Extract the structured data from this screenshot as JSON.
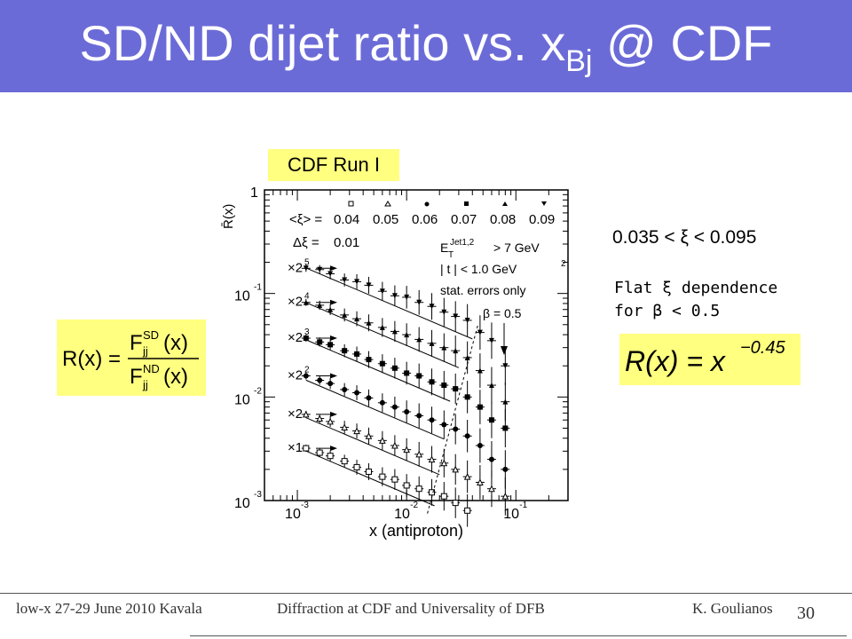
{
  "slide": {
    "title_main": "SD/ND dijet ratio vs. x",
    "title_sub": "Bj",
    "title_tail": "@ CDF",
    "run_label": "CDF Run I",
    "xi_range": "0.035 < ξ < 0.095",
    "flat_line1": "Flat ξ dependence",
    "flat_line2": "for β < 0.5",
    "formula": {
      "lhs": "R(x) =",
      "num_F": "F",
      "num_sup": "SD",
      "num_sub": "jj",
      "num_arg": "(x)",
      "den_F": "F",
      "den_sup": "ND",
      "den_sub": "jj",
      "den_arg": "(x)"
    },
    "fit": {
      "lhs": "R(x) = x",
      "exponent": "−0.45"
    },
    "footer": {
      "left": "low-x 27-29 June 2010 Kavala",
      "middle": "Diffraction at CDF and Universality of DFB",
      "right": "K. Goulianos",
      "page": "30"
    }
  },
  "chart_data": {
    "type": "scatter",
    "ylabel": "R̄(x)",
    "xlabel": "x (antiproton)",
    "x_scale": "log",
    "y_scale": "log",
    "xlim": [
      0.0005,
      0.3
    ],
    "ylim": [
      0.001,
      1
    ],
    "x_ticks": [
      {
        "value": 0.001,
        "base": "10",
        "exp": "-3"
      },
      {
        "value": 0.01,
        "base": "10",
        "exp": "-2"
      },
      {
        "value": 0.1,
        "base": "10",
        "exp": "-1"
      }
    ],
    "y_ticks": [
      {
        "value": 1,
        "base": "1",
        "exp": ""
      },
      {
        "value": 0.1,
        "base": "10",
        "exp": "-1"
      },
      {
        "value": 0.01,
        "base": "10",
        "exp": "-2"
      },
      {
        "value": 0.001,
        "base": "10",
        "exp": "-3"
      }
    ],
    "legend": {
      "xi_prefix": "<ξ> =",
      "xi_values": [
        "0.04",
        "0.05",
        "0.06",
        "0.07",
        "0.08",
        "0.09"
      ],
      "markers": [
        "open-square",
        "open-triangle",
        "filled-circle",
        "filled-square",
        "filled-triangle",
        "filled-triangle-down"
      ],
      "dxi_prefix": "Δξ =",
      "dxi_value": "0.01"
    },
    "annotations": {
      "cut1": "E",
      "cut1_sub": "T",
      "cut1_sup": "Jet1,2",
      "cut1_rest": "> 7 GeV",
      "cut2": "| t | < 1.0 GeV",
      "cut2_sup": "2",
      "cut3": "stat. errors only",
      "beta": "β = 0.5"
    },
    "scale_labels": [
      {
        "base": "×2",
        "exp": "5"
      },
      {
        "base": "×2",
        "exp": "4"
      },
      {
        "base": "×2",
        "exp": "3"
      },
      {
        "base": "×2",
        "exp": "2"
      },
      {
        "base": "×2",
        "exp": ""
      },
      {
        "base": "×1",
        "exp": ""
      }
    ],
    "series": [
      {
        "marker": "filled-triangle-down",
        "xi": 0.09,
        "fit": {
          "a": 0.00855,
          "x_start": 0.0012,
          "x_end": 0.04
        },
        "x": [
          0.0012,
          0.0016,
          0.002,
          0.0027,
          0.0035,
          0.0045,
          0.006,
          0.0078,
          0.01,
          0.013,
          0.017,
          0.022,
          0.028,
          0.036,
          0.047,
          0.06,
          0.08
        ],
        "y": [
          0.175,
          0.17,
          0.155,
          0.135,
          0.13,
          0.12,
          0.105,
          0.095,
          0.092,
          0.082,
          0.075,
          0.066,
          0.06,
          0.055,
          0.042,
          0.035,
          0.02
        ]
      },
      {
        "marker": "filled-triangle",
        "xi": 0.08,
        "fit": {
          "a": 0.00396,
          "x_start": 0.0012,
          "x_end": 0.03
        },
        "x": [
          0.0012,
          0.0016,
          0.002,
          0.0027,
          0.0035,
          0.0045,
          0.006,
          0.0078,
          0.01,
          0.013,
          0.017,
          0.022,
          0.028,
          0.036,
          0.047,
          0.06,
          0.08
        ],
        "y": [
          0.082,
          0.077,
          0.07,
          0.062,
          0.057,
          0.052,
          0.047,
          0.043,
          0.04,
          0.036,
          0.033,
          0.03,
          0.028,
          0.024,
          0.018,
          0.013,
          0.009
        ]
      },
      {
        "marker": "filled-square",
        "xi": 0.07,
        "fit": {
          "a": 0.00173,
          "x_start": 0.0012,
          "x_end": 0.025
        },
        "x": [
          0.0012,
          0.0016,
          0.002,
          0.0027,
          0.0035,
          0.0045,
          0.006,
          0.0078,
          0.01,
          0.013,
          0.017,
          0.022,
          0.028,
          0.036,
          0.047,
          0.06,
          0.08
        ],
        "y": [
          0.037,
          0.034,
          0.032,
          0.028,
          0.026,
          0.023,
          0.021,
          0.019,
          0.017,
          0.016,
          0.014,
          0.013,
          0.012,
          0.01,
          0.008,
          0.006,
          0.005
        ]
      },
      {
        "marker": "filled-circle",
        "xi": 0.06,
        "fit": {
          "a": 0.000705,
          "x_start": 0.0012,
          "x_end": 0.022
        },
        "x": [
          0.0012,
          0.0016,
          0.002,
          0.0027,
          0.0035,
          0.0045,
          0.006,
          0.0078,
          0.01,
          0.013,
          0.017,
          0.022,
          0.028,
          0.036,
          0.047,
          0.06,
          0.08
        ],
        "y": [
          0.016,
          0.0145,
          0.0135,
          0.0118,
          0.011,
          0.0098,
          0.0088,
          0.008,
          0.0072,
          0.0066,
          0.006,
          0.0054,
          0.0049,
          0.0042,
          0.0034,
          0.0025,
          0.002
        ]
      },
      {
        "marker": "open-triangle",
        "xi": 0.05,
        "fit": {
          "a": 0.000306,
          "x_start": 0.0012,
          "x_end": 0.02
        },
        "x": [
          0.0012,
          0.0016,
          0.002,
          0.0027,
          0.0035,
          0.0045,
          0.006,
          0.0078,
          0.01,
          0.013,
          0.017,
          0.022,
          0.028,
          0.036,
          0.047,
          0.06,
          0.08
        ],
        "y": [
          0.0068,
          0.0062,
          0.0058,
          0.0051,
          0.0047,
          0.0042,
          0.0038,
          0.0034,
          0.0031,
          0.0028,
          0.0025,
          0.0023,
          0.002,
          0.0017,
          0.0015,
          0.0013,
          0.0011
        ]
      },
      {
        "marker": "open-square",
        "xi": 0.04,
        "fit": {
          "a": 0.000146,
          "x_start": 0.0012,
          "x_end": 0.018
        },
        "x": [
          0.0012,
          0.0016,
          0.002,
          0.0027,
          0.0035,
          0.0045,
          0.006,
          0.0078,
          0.01,
          0.013,
          0.017,
          0.022,
          0.028,
          0.036
        ],
        "y": [
          0.0032,
          0.0029,
          0.0027,
          0.0024,
          0.0021,
          0.0019,
          0.0017,
          0.0016,
          0.0014,
          0.0013,
          0.0012,
          0.0011,
          0.00095,
          0.0008
        ]
      }
    ],
    "beta_line": {
      "x": [
        0.0155,
        0.045
      ],
      "y": [
        0.00075,
        0.05
      ]
    }
  }
}
